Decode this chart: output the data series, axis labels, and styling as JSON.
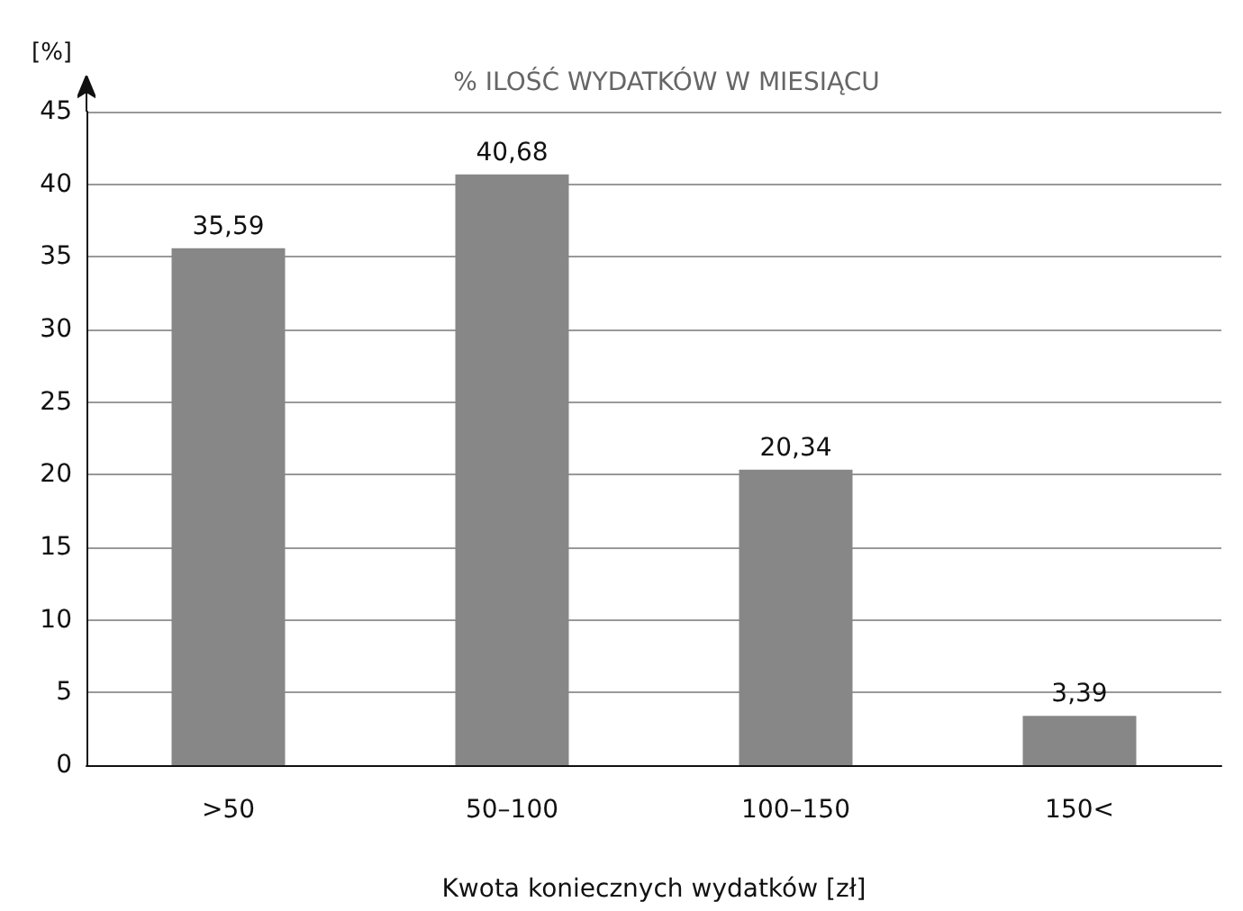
{
  "chart_data": {
    "type": "bar",
    "title": "% ILOŚĆ WYDATKÓW W MIESIĄCU",
    "xlabel": "Kwota koniecznych wydatków [zł]",
    "ylabel": "[%]",
    "categories": [
      ">50",
      "50–100",
      "100–150",
      "150<"
    ],
    "values": [
      35.59,
      40.68,
      20.34,
      3.39
    ],
    "value_labels": [
      "35,59",
      "40,68",
      "20,34",
      "3,39"
    ],
    "color": "#878787",
    "ylim": [
      0,
      45
    ],
    "yticks": [
      0,
      5,
      10,
      15,
      20,
      25,
      30,
      35,
      40,
      45
    ],
    "grid": "y"
  }
}
